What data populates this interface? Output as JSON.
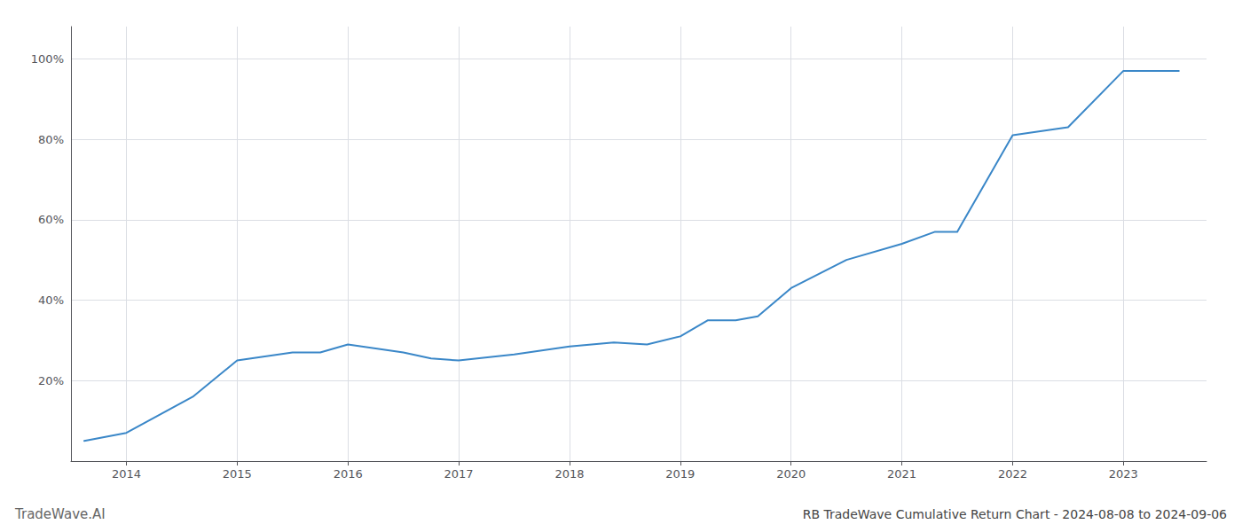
{
  "chart_data": {
    "type": "line",
    "title": "RB TradeWave Cumulative Return Chart - 2024-08-08 to 2024-09-06",
    "annotations": [
      "TradeWave.AI"
    ],
    "x": [
      2013.62,
      2014.0,
      2014.6,
      2015.0,
      2015.25,
      2015.5,
      2015.75,
      2016.0,
      2016.5,
      2016.75,
      2017.0,
      2017.5,
      2018.0,
      2018.4,
      2018.7,
      2019.0,
      2019.25,
      2019.5,
      2019.7,
      2020.0,
      2020.5,
      2021.0,
      2021.3,
      2021.5,
      2022.0,
      2022.5,
      2023.0,
      2023.5
    ],
    "values": [
      5,
      7,
      16,
      25,
      26,
      27,
      27,
      29,
      27,
      25.5,
      25,
      26.5,
      28.5,
      29.5,
      29,
      31,
      35,
      35,
      36,
      43,
      50,
      54,
      57,
      57,
      81,
      83,
      97,
      97
    ],
    "color": "#3a87c8",
    "xlim": [
      2013.5,
      2023.75
    ],
    "ylim": [
      0,
      108
    ],
    "xticks": [
      2014,
      2015,
      2016,
      2017,
      2018,
      2019,
      2020,
      2021,
      2022,
      2023
    ],
    "yticks": [
      {
        "value": 20,
        "label": "20%"
      },
      {
        "value": 40,
        "label": "40%"
      },
      {
        "value": 60,
        "label": "60%"
      },
      {
        "value": 80,
        "label": "80%"
      },
      {
        "value": 100,
        "label": "100%"
      }
    ],
    "grid": true
  }
}
